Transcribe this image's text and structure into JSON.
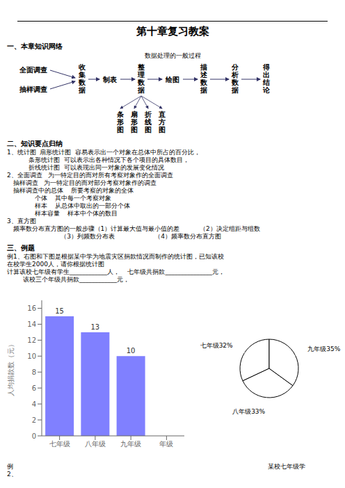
{
  "title": "第十章复习教案",
  "annotations": [
    "一、本章知识网络",
    "数据处理的一般过程",
    "全面调查",
    "抽样调查",
    "收\n集\n数\n据",
    "制表",
    "整\n理\n数\n据",
    "绘图",
    "描\n述\n数\n据",
    "分\n析\n数\n据",
    "得\n出\n结\n论",
    "条\n形\n图",
    "扇\n形\n图",
    "折\n线\n图",
    "直\n方\n图",
    "二、知识要点归纳",
    "1、统计图  扇形统计图  容易表示出一个对象在总体中所占的百分比，",
    "           条形统计图  可以表示出各种情况下各个项目的具体数目，",
    "           折线统计图  可以表现出同一对象的发展变化情况",
    "2、全面调查   为一特定目的而对所有考察对象作的全面调查",
    "   抽样调查   为一特定目的而对部分考察对象作的调查",
    "   抽样调查中的总体    所要考察的对象的全体",
    "              个体    其中每一个考察对象",
    "              样本    从总体中取出的一部分个体",
    "              样本容量    样本中个体的数目",
    "3、直方图",
    "   频率数分布直方图的一般步骤（1）计算最大值与最小值的差          （2）决定组距与组数",
    "                           （3）列频数分布表                    （4）频率数分布直方图",
    "三、例题",
    "例1、右图和下图是根据某中学为地震灾区捐款情况而制作的统计图，已知该校",
    "在校学生2000人，请你根据统计图",
    "计算该校七年级有学生____________人，    七年级共捐款_______________元，",
    "        该校三个年级共捐款____________元，",
    "例\n2、",
    "某校七年级学"
  ],
  "chart_data": [
    {
      "type": "pie",
      "categories": [
        "七年级32%",
        "八年级33%",
        "九年级35%"
      ],
      "values": [
        32,
        33,
        35
      ],
      "colors": [
        "#ffffff",
        "#ffffff",
        "#ffffff"
      ]
    },
    {
      "type": "bar",
      "categories": [
        "七年级",
        "八年级",
        "九年级",
        "年级"
      ],
      "values": [
        15,
        13,
        10,
        null
      ],
      "color": "#8080ff",
      "ylabel": "人均捐款数（元）",
      "ylim": [
        0,
        17
      ],
      "yticks": [
        0,
        2,
        4,
        6,
        8,
        10,
        12,
        14,
        16
      ],
      "grid": false,
      "data_labels": true
    }
  ]
}
